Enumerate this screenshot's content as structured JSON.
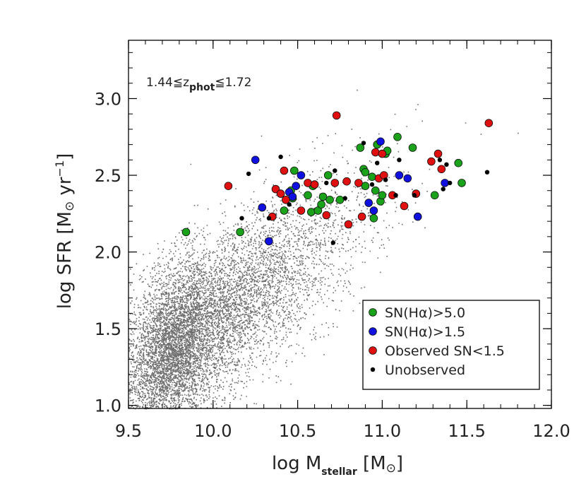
{
  "chart_data": {
    "type": "scatter",
    "title": "",
    "annotation": {
      "prefix": "1.44≦z",
      "subscript": "phot",
      "suffix": "≦1.72"
    },
    "xlabel": {
      "main": "log M",
      "subscript": "stellar",
      "unit": "[M",
      "unit_close": "]"
    },
    "ylabel": {
      "main": "log SFR [M",
      "unit_tail": " yr",
      "exponent": "−1",
      "close": "]"
    },
    "xlim": [
      9.5,
      12.0
    ],
    "ylim": [
      0.98,
      3.38
    ],
    "xticks": [
      9.5,
      10.0,
      10.5,
      11.0,
      11.5,
      12.0
    ],
    "xtick_labels": [
      "9.5",
      "10.0",
      "10.5",
      "11.0",
      "11.5",
      "12.0"
    ],
    "yticks": [
      1.0,
      1.5,
      2.0,
      2.5,
      3.0
    ],
    "ytick_labels": [
      "1.0",
      "1.5",
      "2.0",
      "2.5",
      "3.0"
    ],
    "background_population": {
      "name": "parent photometric sample (grey dots)",
      "approx_count": 9000,
      "peak": {
        "x": 9.85,
        "y": 1.45
      },
      "relation": "SFR rises with stellar mass, slope ~0.75"
    },
    "legend": {
      "position": "bottom-right",
      "entries": [
        {
          "label": "SN(Hα)>5.0",
          "color": "#1aa31a"
        },
        {
          "label": "SN(Hα)>1.5",
          "color": "#1010e0"
        },
        {
          "label": "Observed SN<1.5",
          "color": "#e01010"
        },
        {
          "label": "Unobserved",
          "color": "#000000"
        }
      ]
    },
    "series": [
      {
        "name": "SN(Hα)>5.0",
        "color": "#1aa31a",
        "points": [
          [
            9.84,
            2.13
          ],
          [
            10.16,
            2.13
          ],
          [
            10.42,
            2.27
          ],
          [
            10.46,
            2.4
          ],
          [
            10.47,
            2.35
          ],
          [
            10.48,
            2.53
          ],
          [
            10.56,
            2.37
          ],
          [
            10.58,
            2.26
          ],
          [
            10.59,
            2.43
          ],
          [
            10.62,
            2.27
          ],
          [
            10.64,
            2.31
          ],
          [
            10.65,
            2.36
          ],
          [
            10.69,
            2.34
          ],
          [
            10.68,
            2.5
          ],
          [
            10.75,
            2.34
          ],
          [
            10.87,
            2.68
          ],
          [
            10.89,
            2.54
          ],
          [
            10.9,
            2.52
          ],
          [
            10.9,
            2.43
          ],
          [
            10.94,
            2.49
          ],
          [
            10.95,
            2.22
          ],
          [
            10.96,
            2.4
          ],
          [
            10.97,
            2.7
          ],
          [
            10.99,
            2.33
          ],
          [
            11.0,
            2.37
          ],
          [
            11.02,
            2.64
          ],
          [
            11.03,
            2.66
          ],
          [
            11.09,
            2.75
          ],
          [
            11.18,
            2.68
          ],
          [
            11.31,
            2.37
          ],
          [
            11.45,
            2.58
          ],
          [
            11.47,
            2.45
          ]
        ]
      },
      {
        "name": "SN(Hα)>1.5",
        "color": "#1010e0",
        "points": [
          [
            10.25,
            2.6
          ],
          [
            10.29,
            2.29
          ],
          [
            10.33,
            2.07
          ],
          [
            10.45,
            2.39
          ],
          [
            10.47,
            2.36
          ],
          [
            10.49,
            2.43
          ],
          [
            10.52,
            2.5
          ],
          [
            10.92,
            2.32
          ],
          [
            10.95,
            2.27
          ],
          [
            10.99,
            2.72
          ],
          [
            11.1,
            2.5
          ],
          [
            11.15,
            2.48
          ],
          [
            11.21,
            2.23
          ],
          [
            11.37,
            2.45
          ]
        ]
      },
      {
        "name": "Observed SN<1.5",
        "color": "#e01010",
        "points": [
          [
            10.09,
            2.43
          ],
          [
            10.35,
            2.23
          ],
          [
            10.37,
            2.41
          ],
          [
            10.4,
            2.38
          ],
          [
            10.42,
            2.53
          ],
          [
            10.43,
            2.34
          ],
          [
            10.52,
            2.27
          ],
          [
            10.56,
            2.45
          ],
          [
            10.6,
            2.44
          ],
          [
            10.67,
            2.24
          ],
          [
            10.72,
            2.45
          ],
          [
            10.73,
            2.89
          ],
          [
            10.79,
            2.46
          ],
          [
            10.8,
            2.18
          ],
          [
            10.86,
            2.45
          ],
          [
            10.88,
            2.23
          ],
          [
            10.96,
            2.65
          ],
          [
            10.98,
            2.48
          ],
          [
            11.0,
            2.64
          ],
          [
            11.01,
            2.5
          ],
          [
            11.06,
            2.37
          ],
          [
            11.13,
            2.3
          ],
          [
            11.2,
            2.38
          ],
          [
            11.29,
            2.59
          ],
          [
            11.33,
            2.64
          ],
          [
            11.35,
            2.54
          ],
          [
            11.63,
            2.84
          ]
        ]
      },
      {
        "name": "Unobserved",
        "color": "#000000",
        "points": [
          [
            10.17,
            2.22
          ],
          [
            10.21,
            2.51
          ],
          [
            10.33,
            2.22
          ],
          [
            10.4,
            2.62
          ],
          [
            10.45,
            2.31
          ],
          [
            10.67,
            2.45
          ],
          [
            10.71,
            2.06
          ],
          [
            10.72,
            2.53
          ],
          [
            10.78,
            2.35
          ],
          [
            10.89,
            2.71
          ],
          [
            10.94,
            2.44
          ],
          [
            10.97,
            2.58
          ],
          [
            11.02,
            2.47
          ],
          [
            11.08,
            2.37
          ],
          [
            11.1,
            2.6
          ],
          [
            11.19,
            2.37
          ],
          [
            11.34,
            2.6
          ],
          [
            11.36,
            2.41
          ],
          [
            11.38,
            2.57
          ],
          [
            11.4,
            2.45
          ],
          [
            11.62,
            2.52
          ]
        ]
      }
    ]
  }
}
